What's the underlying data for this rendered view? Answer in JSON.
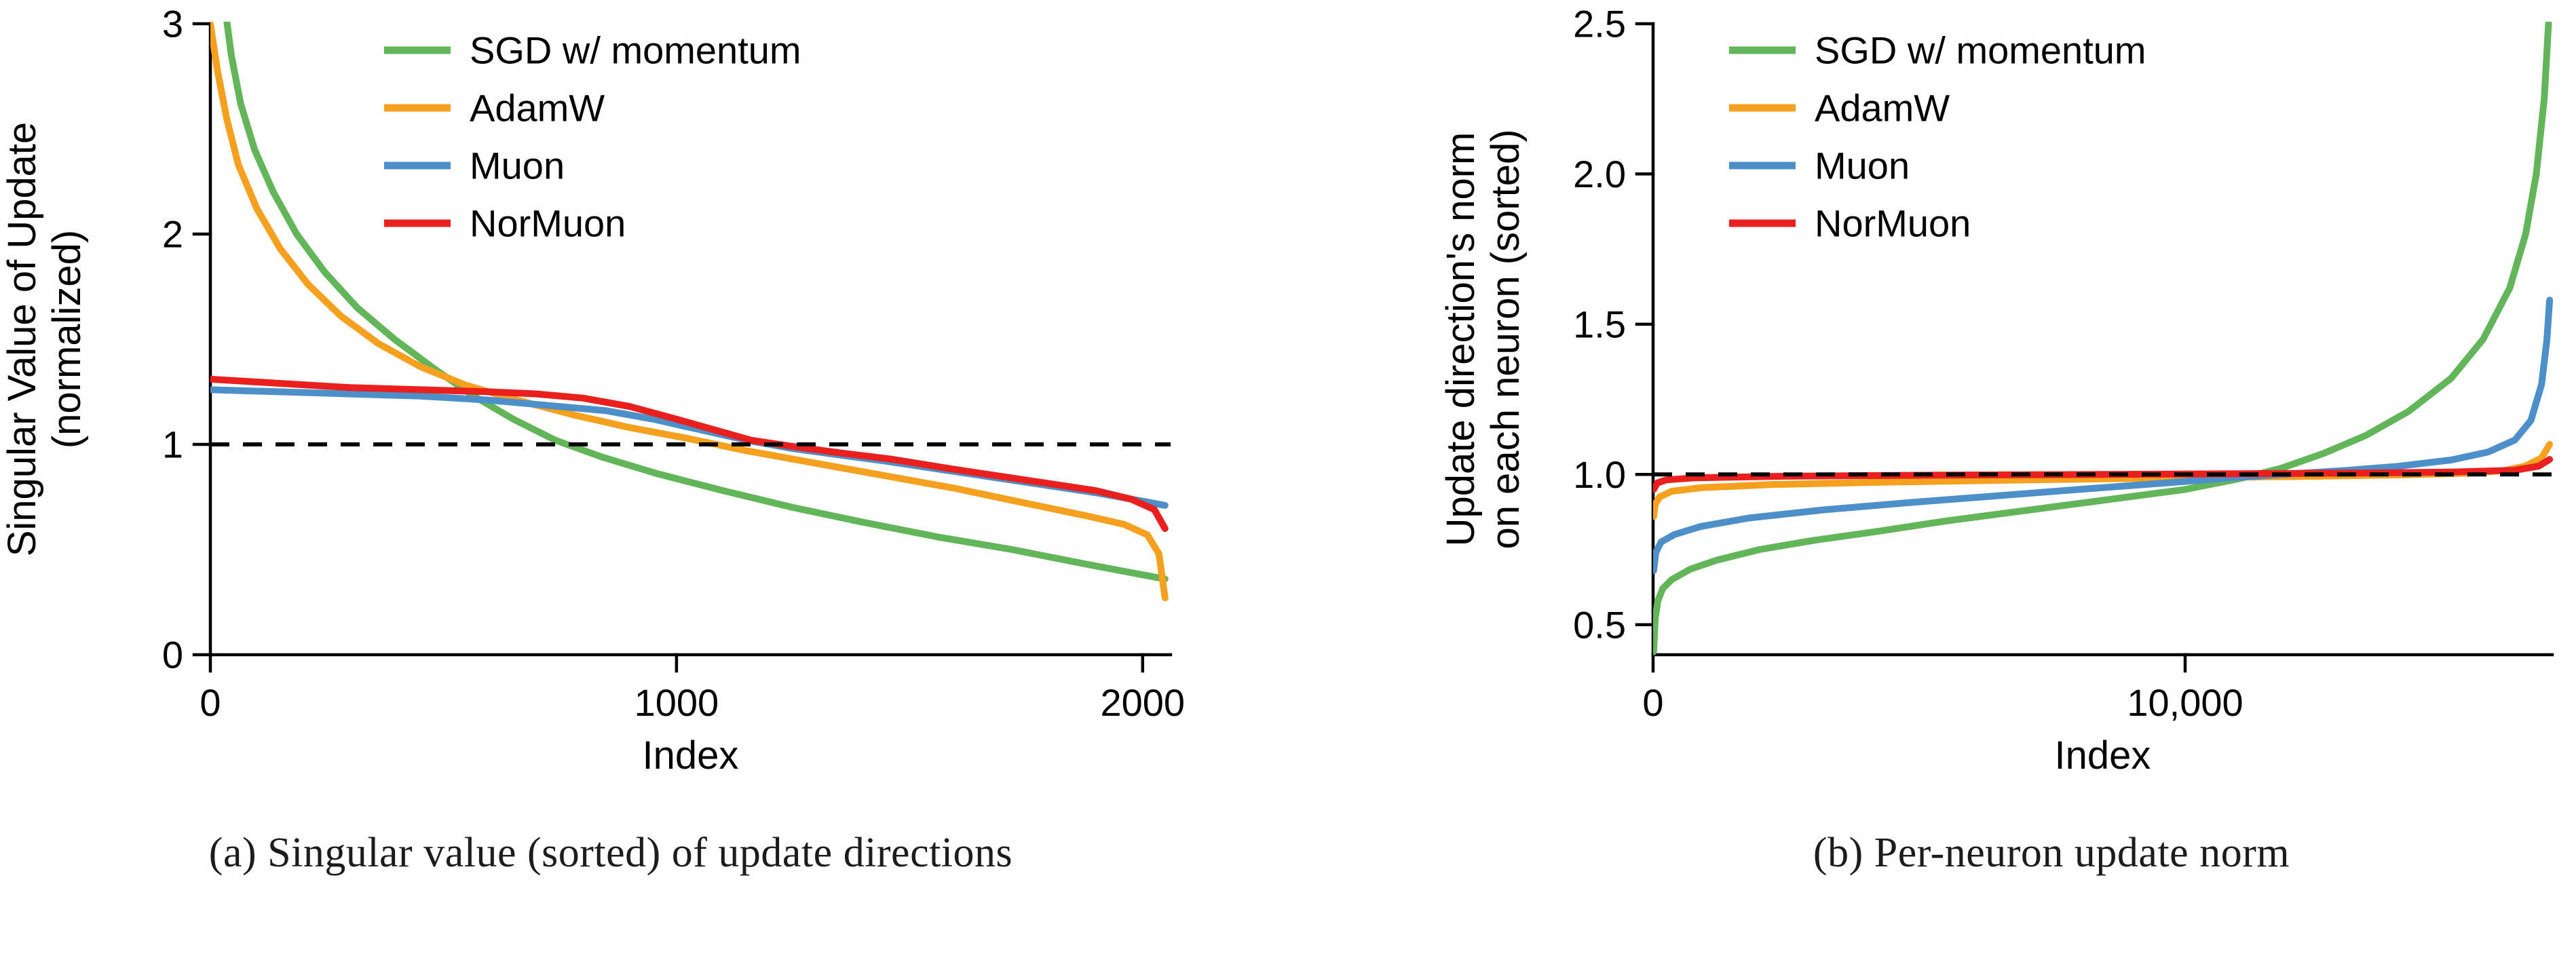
{
  "figure": {
    "background": "#ffffff",
    "accent_colors": {
      "sgd_green": "#62b558",
      "adamw_orange": "#f5a01e",
      "muon_blue": "#4d8fc9",
      "normuon_red": "#ea201e",
      "reference_black": "#000000"
    }
  },
  "panels": [
    {
      "caption": "(a) Singular value (sorted) of update directions"
    },
    {
      "caption": "(b) Per-neuron update norm"
    }
  ],
  "chart_data": [
    {
      "type": "line",
      "title": "",
      "xlabel": "Index",
      "ylabel": "Singular Value of Update (normalized)",
      "ylabel_lines": [
        "Singular Value of Update",
        "(normalized)"
      ],
      "xlim": [
        0,
        2060
      ],
      "ylim": [
        0,
        3
      ],
      "grid": false,
      "legend_position": "upper center inside",
      "xticks": [
        {
          "v": 0,
          "label": "0"
        },
        {
          "v": 1000,
          "label": "1000"
        },
        {
          "v": 2000,
          "label": "2000"
        }
      ],
      "yticks": [
        {
          "v": 0,
          "label": "0"
        },
        {
          "v": 1,
          "label": "1"
        },
        {
          "v": 2,
          "label": "2"
        },
        {
          "v": 3,
          "label": "3"
        }
      ],
      "reference_line": {
        "y": 1.0,
        "style": "dashed",
        "color": "#000000"
      },
      "series": [
        {
          "name": "SGD w/ momentum",
          "color": "#62b558",
          "points": [
            [
              0,
              4.2
            ],
            [
              10,
              3.7
            ],
            [
              20,
              3.35
            ],
            [
              30,
              3.1
            ],
            [
              45,
              2.85
            ],
            [
              65,
              2.62
            ],
            [
              95,
              2.4
            ],
            [
              135,
              2.2
            ],
            [
              185,
              2.0
            ],
            [
              245,
              1.82
            ],
            [
              315,
              1.65
            ],
            [
              395,
              1.5
            ],
            [
              480,
              1.36
            ],
            [
              565,
              1.23
            ],
            [
              650,
              1.12
            ],
            [
              740,
              1.02
            ],
            [
              840,
              0.94
            ],
            [
              960,
              0.86
            ],
            [
              1100,
              0.78
            ],
            [
              1250,
              0.7
            ],
            [
              1400,
              0.63
            ],
            [
              1560,
              0.56
            ],
            [
              1720,
              0.5
            ],
            [
              1880,
              0.43
            ],
            [
              2000,
              0.38
            ],
            [
              2048,
              0.36
            ]
          ]
        },
        {
          "name": "AdamW",
          "color": "#f5a01e",
          "points": [
            [
              0,
              3.0
            ],
            [
              15,
              2.78
            ],
            [
              35,
              2.55
            ],
            [
              60,
              2.33
            ],
            [
              100,
              2.12
            ],
            [
              150,
              1.93
            ],
            [
              210,
              1.76
            ],
            [
              280,
              1.61
            ],
            [
              360,
              1.48
            ],
            [
              450,
              1.37
            ],
            [
              550,
              1.28
            ],
            [
              660,
              1.21
            ],
            [
              780,
              1.14
            ],
            [
              900,
              1.08
            ],
            [
              1020,
              1.03
            ],
            [
              1150,
              0.97
            ],
            [
              1300,
              0.91
            ],
            [
              1450,
              0.85
            ],
            [
              1600,
              0.79
            ],
            [
              1750,
              0.72
            ],
            [
              1880,
              0.66
            ],
            [
              1960,
              0.62
            ],
            [
              2010,
              0.57
            ],
            [
              2035,
              0.48
            ],
            [
              2048,
              0.27
            ]
          ]
        },
        {
          "name": "Muon",
          "color": "#4d8fc9",
          "points": [
            [
              0,
              1.26
            ],
            [
              150,
              1.25
            ],
            [
              300,
              1.24
            ],
            [
              450,
              1.23
            ],
            [
              600,
              1.21
            ],
            [
              750,
              1.18
            ],
            [
              850,
              1.16
            ],
            [
              950,
              1.12
            ],
            [
              1050,
              1.07
            ],
            [
              1150,
              1.02
            ],
            [
              1250,
              0.98
            ],
            [
              1350,
              0.95
            ],
            [
              1450,
              0.92
            ],
            [
              1600,
              0.87
            ],
            [
              1750,
              0.82
            ],
            [
              1900,
              0.77
            ],
            [
              2000,
              0.73
            ],
            [
              2048,
              0.71
            ]
          ]
        },
        {
          "name": "NorMuon",
          "color": "#ea201e",
          "points": [
            [
              0,
              1.31
            ],
            [
              150,
              1.29
            ],
            [
              300,
              1.27
            ],
            [
              450,
              1.26
            ],
            [
              600,
              1.25
            ],
            [
              700,
              1.24
            ],
            [
              800,
              1.22
            ],
            [
              900,
              1.18
            ],
            [
              1000,
              1.12
            ],
            [
              1080,
              1.07
            ],
            [
              1160,
              1.02
            ],
            [
              1250,
              0.99
            ],
            [
              1350,
              0.96
            ],
            [
              1460,
              0.93
            ],
            [
              1600,
              0.88
            ],
            [
              1750,
              0.83
            ],
            [
              1900,
              0.78
            ],
            [
              1975,
              0.74
            ],
            [
              2025,
              0.69
            ],
            [
              2048,
              0.6
            ]
          ]
        }
      ]
    },
    {
      "type": "line",
      "title": "",
      "xlabel": "Index",
      "ylabel": "Update direction's norm on each neuron (sorted)",
      "ylabel_lines": [
        "Update direction's norm",
        "on each neuron (sorted)"
      ],
      "xlim": [
        0,
        16900
      ],
      "ylim": [
        0.4,
        2.5
      ],
      "grid": false,
      "legend_position": "upper left inside",
      "xticks": [
        {
          "v": 0,
          "label": "0"
        },
        {
          "v": 10000,
          "label": "10,000"
        }
      ],
      "yticks": [
        {
          "v": 0.5,
          "label": "0.5"
        },
        {
          "v": 1.0,
          "label": "1.0"
        },
        {
          "v": 1.5,
          "label": "1.5"
        },
        {
          "v": 2.0,
          "label": "2.0"
        },
        {
          "v": 2.5,
          "label": "2.5"
        }
      ],
      "reference_line": {
        "y": 1.0,
        "style": "dashed",
        "color": "#000000"
      },
      "series": [
        {
          "name": "SGD w/ momentum",
          "color": "#62b558",
          "points": [
            [
              10,
              0.41
            ],
            [
              40,
              0.52
            ],
            [
              90,
              0.58
            ],
            [
              180,
              0.62
            ],
            [
              350,
              0.65
            ],
            [
              700,
              0.685
            ],
            [
              1200,
              0.715
            ],
            [
              2000,
              0.75
            ],
            [
              3000,
              0.78
            ],
            [
              4200,
              0.81
            ],
            [
              5500,
              0.845
            ],
            [
              7000,
              0.88
            ],
            [
              8500,
              0.915
            ],
            [
              10000,
              0.95
            ],
            [
              11000,
              0.985
            ],
            [
              11800,
              1.02
            ],
            [
              12600,
              1.07
            ],
            [
              13400,
              1.13
            ],
            [
              14200,
              1.21
            ],
            [
              15000,
              1.32
            ],
            [
              15600,
              1.45
            ],
            [
              16100,
              1.62
            ],
            [
              16400,
              1.8
            ],
            [
              16600,
              2.0
            ],
            [
              16750,
              2.25
            ],
            [
              16830,
              2.5
            ]
          ]
        },
        {
          "name": "AdamW",
          "color": "#f5a01e",
          "points": [
            [
              10,
              0.86
            ],
            [
              40,
              0.9
            ],
            [
              120,
              0.925
            ],
            [
              350,
              0.944
            ],
            [
              900,
              0.956
            ],
            [
              2200,
              0.966
            ],
            [
              4500,
              0.975
            ],
            [
              7500,
              0.983
            ],
            [
              10000,
              0.989
            ],
            [
              12500,
              0.994
            ],
            [
              14200,
              0.999
            ],
            [
              15300,
              1.004
            ],
            [
              16000,
              1.013
            ],
            [
              16400,
              1.028
            ],
            [
              16700,
              1.055
            ],
            [
              16850,
              1.1
            ]
          ]
        },
        {
          "name": "Muon",
          "color": "#4d8fc9",
          "points": [
            [
              10,
              0.68
            ],
            [
              50,
              0.74
            ],
            [
              150,
              0.775
            ],
            [
              400,
              0.8
            ],
            [
              900,
              0.827
            ],
            [
              1800,
              0.855
            ],
            [
              3200,
              0.882
            ],
            [
              4800,
              0.906
            ],
            [
              6400,
              0.928
            ],
            [
              8000,
              0.95
            ],
            [
              9500,
              0.97
            ],
            [
              10800,
              0.988
            ],
            [
              12000,
              1.002
            ],
            [
              13000,
              1.013
            ],
            [
              14000,
              1.027
            ],
            [
              15000,
              1.048
            ],
            [
              15700,
              1.075
            ],
            [
              16200,
              1.115
            ],
            [
              16500,
              1.18
            ],
            [
              16700,
              1.3
            ],
            [
              16800,
              1.45
            ],
            [
              16850,
              1.58
            ]
          ]
        },
        {
          "name": "NorMuon",
          "color": "#ea201e",
          "points": [
            [
              10,
              0.95
            ],
            [
              80,
              0.972
            ],
            [
              250,
              0.982
            ],
            [
              800,
              0.989
            ],
            [
              2500,
              0.994
            ],
            [
              5500,
              0.998
            ],
            [
              8500,
              1.0
            ],
            [
              11500,
              1.003
            ],
            [
              13500,
              1.005
            ],
            [
              15000,
              1.008
            ],
            [
              16200,
              1.014
            ],
            [
              16650,
              1.028
            ],
            [
              16850,
              1.05
            ]
          ]
        }
      ]
    }
  ]
}
